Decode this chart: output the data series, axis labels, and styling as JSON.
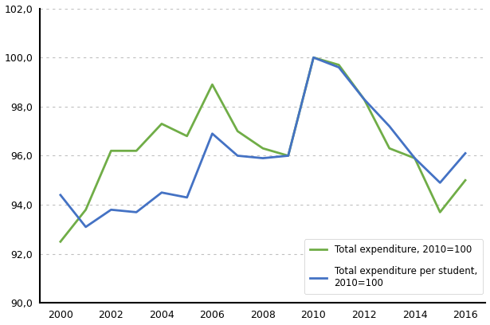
{
  "years": [
    2000,
    2001,
    2002,
    2003,
    2004,
    2005,
    2006,
    2007,
    2008,
    2009,
    2010,
    2011,
    2012,
    2013,
    2014,
    2015,
    2016
  ],
  "total_expenditure": [
    92.5,
    93.8,
    96.2,
    96.2,
    97.3,
    96.8,
    98.9,
    97.0,
    96.3,
    96.0,
    100.0,
    99.7,
    98.3,
    96.3,
    95.9,
    93.7,
    95.0
  ],
  "total_per_student": [
    94.4,
    93.1,
    93.8,
    93.7,
    94.5,
    94.3,
    96.9,
    96.0,
    95.9,
    96.0,
    100.0,
    99.6,
    98.3,
    97.2,
    95.9,
    94.9,
    96.1
  ],
  "line_color_total": "#70ad47",
  "line_color_per_student": "#4472c4",
  "ylim": [
    90.0,
    102.0
  ],
  "yticks": [
    90.0,
    92.0,
    94.0,
    96.0,
    98.0,
    100.0,
    102.0
  ],
  "xticks": [
    2000,
    2002,
    2004,
    2006,
    2008,
    2010,
    2012,
    2014,
    2016
  ],
  "legend_total": "Total expenditure, 2010=100",
  "legend_per_student": "Total expenditure per student,\n2010=100",
  "grid_color": "#c0c0c0",
  "background_color": "#ffffff",
  "line_width": 2.0,
  "figsize": [
    6.15,
    4.08
  ],
  "dpi": 100
}
